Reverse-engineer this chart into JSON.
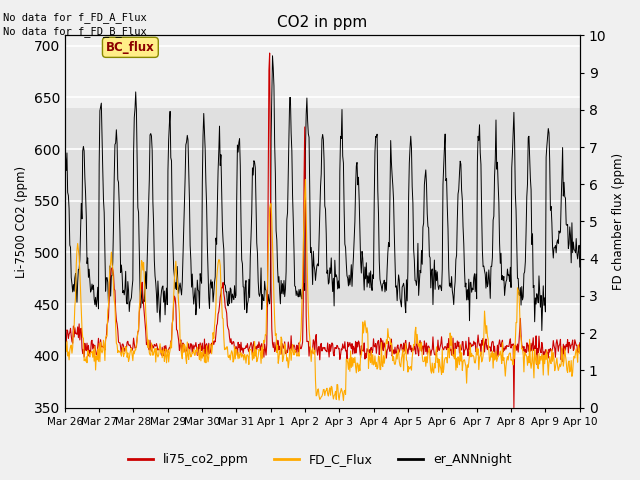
{
  "title": "CO2 in ppm",
  "ylabel_left": "Li-7500 CO2 (ppm)",
  "ylabel_right": "FD chamber flux (ppm)",
  "ylim_left": [
    350,
    710
  ],
  "ylim_right": [
    0.0,
    10.0
  ],
  "yticks_left": [
    350,
    400,
    450,
    500,
    550,
    600,
    650,
    700
  ],
  "yticks_right": [
    0.0,
    1.0,
    2.0,
    3.0,
    4.0,
    5.0,
    6.0,
    7.0,
    8.0,
    9.0,
    10.0
  ],
  "xtick_labels": [
    "Mar 26",
    "Mar 27",
    "Mar 28",
    "Mar 29",
    "Mar 30",
    "Mar 31",
    "Apr 1",
    "Apr 2",
    "Apr 3",
    "Apr 4",
    "Apr 5",
    "Apr 6",
    "Apr 7",
    "Apr 8",
    "Apr 9",
    "Apr 10"
  ],
  "text_top_left_1": "No data for f_FD_A_Flux",
  "text_top_left_2": "No data for f_FD_B_Flux",
  "bc_flux_label": "BC_flux",
  "legend_entries": [
    "li75_co2_ppm",
    "FD_C_Flux",
    "er_ANNnight"
  ],
  "line_colors": [
    "#cc0000",
    "#ffaa00",
    "#000000"
  ],
  "background_band": [
    450,
    640
  ],
  "background_color": "#e0e0e0",
  "fig_facecolor": "#f0f0f0"
}
